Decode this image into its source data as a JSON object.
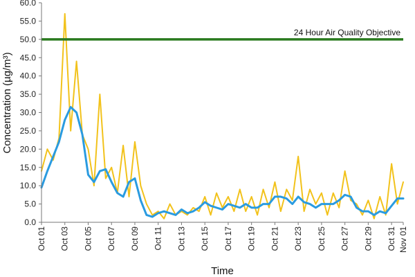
{
  "chart_data": {
    "type": "line",
    "title": "",
    "xlabel": "Time",
    "ylabel": "Concentration (µg/m³)",
    "ylim": [
      0,
      60
    ],
    "y_ticks": [
      "0.0",
      "5.0",
      "10.0",
      "15.0",
      "20.0",
      "25.0",
      "30.0",
      "35.0",
      "40.0",
      "45.0",
      "50.0",
      "55.0",
      "60.0"
    ],
    "xlim": [
      "Oct 01",
      "Nov 01"
    ],
    "x_ticks": [
      "Oct 01",
      "Oct 03",
      "Oct 05",
      "Oct 07",
      "Oct 09",
      "Oct 11",
      "Oct 13",
      "Oct 15",
      "Oct 17",
      "Oct 19",
      "Oct 21",
      "Oct 23",
      "Oct 25",
      "Oct 27",
      "Oct 29",
      "Oct 31",
      "Nov 01"
    ],
    "grid": false,
    "objective": {
      "label": "24 Hour Air Quality Objective",
      "value": 50,
      "color": "#2a7a1e"
    },
    "series": [
      {
        "color": "#f2c21b",
        "x": [
          "Oct 01",
          "Oct 01 12:00",
          "Oct 02",
          "Oct 02 12:00",
          "Oct 03",
          "Oct 03 12:00",
          "Oct 04",
          "Oct 04 12:00",
          "Oct 05",
          "Oct 05 12:00",
          "Oct 06",
          "Oct 06 12:00",
          "Oct 07",
          "Oct 07 12:00",
          "Oct 08",
          "Oct 08 12:00",
          "Oct 09",
          "Oct 09 12:00",
          "Oct 10",
          "Oct 10 12:00",
          "Oct 11",
          "Oct 11 12:00",
          "Oct 12",
          "Oct 12 12:00",
          "Oct 13",
          "Oct 13 12:00",
          "Oct 14",
          "Oct 14 12:00",
          "Oct 15",
          "Oct 15 12:00",
          "Oct 16",
          "Oct 16 12:00",
          "Oct 17",
          "Oct 17 12:00",
          "Oct 18",
          "Oct 18 12:00",
          "Oct 19",
          "Oct 19 12:00",
          "Oct 20",
          "Oct 20 12:00",
          "Oct 21",
          "Oct 21 12:00",
          "Oct 22",
          "Oct 22 12:00",
          "Oct 23",
          "Oct 23 12:00",
          "Oct 24",
          "Oct 24 12:00",
          "Oct 25",
          "Oct 25 12:00",
          "Oct 26",
          "Oct 26 12:00",
          "Oct 27",
          "Oct 27 12:00",
          "Oct 28",
          "Oct 28 12:00",
          "Oct 29",
          "Oct 29 12:00",
          "Oct 30",
          "Oct 30 12:00",
          "Oct 31",
          "Oct 31 12:00",
          "Nov 01"
        ],
        "values": [
          14,
          20,
          17,
          23,
          57,
          25,
          44,
          24,
          20,
          10,
          35,
          12,
          15,
          8,
          21,
          7,
          22,
          10,
          5,
          2,
          3,
          1,
          5,
          2,
          3,
          2,
          4,
          3,
          7,
          2,
          8,
          4,
          7,
          3,
          9,
          3,
          7,
          2,
          9,
          4,
          11,
          3,
          9,
          6,
          18,
          3,
          9,
          5,
          8,
          2,
          8,
          4,
          14,
          6,
          5,
          2,
          6,
          1,
          7,
          2,
          16,
          5,
          11
        ]
      },
      {
        "color": "#2a9be0",
        "x": [
          "Oct 01",
          "Oct 01 12:00",
          "Oct 02",
          "Oct 02 12:00",
          "Oct 03",
          "Oct 03 12:00",
          "Oct 04",
          "Oct 04 12:00",
          "Oct 05",
          "Oct 05 12:00",
          "Oct 06",
          "Oct 06 12:00",
          "Oct 07",
          "Oct 07 12:00",
          "Oct 08",
          "Oct 08 12:00",
          "Oct 09",
          "Oct 09 12:00",
          "Oct 10",
          "Oct 10 12:00",
          "Oct 11",
          "Oct 11 12:00",
          "Oct 12",
          "Oct 12 12:00",
          "Oct 13",
          "Oct 13 12:00",
          "Oct 14",
          "Oct 14 12:00",
          "Oct 15",
          "Oct 15 12:00",
          "Oct 16",
          "Oct 16 12:00",
          "Oct 17",
          "Oct 17 12:00",
          "Oct 18",
          "Oct 18 12:00",
          "Oct 19",
          "Oct 19 12:00",
          "Oct 20",
          "Oct 20 12:00",
          "Oct 21",
          "Oct 21 12:00",
          "Oct 22",
          "Oct 22 12:00",
          "Oct 23",
          "Oct 23 12:00",
          "Oct 24",
          "Oct 24 12:00",
          "Oct 25",
          "Oct 25 12:00",
          "Oct 26",
          "Oct 26 12:00",
          "Oct 27",
          "Oct 27 12:00",
          "Oct 28",
          "Oct 28 12:00",
          "Oct 29",
          "Oct 29 12:00",
          "Oct 30",
          "Oct 30 12:00",
          "Oct 31",
          "Oct 31 12:00",
          "Nov 01"
        ],
        "values": [
          9.5,
          14,
          18,
          22,
          28,
          31.5,
          30,
          24,
          13,
          11,
          14,
          14.5,
          11,
          8,
          7,
          11,
          12,
          6,
          2,
          1.5,
          2.5,
          3,
          2.5,
          2,
          3.5,
          2.5,
          3,
          4,
          5.5,
          4.5,
          4,
          3.5,
          5,
          4.5,
          4,
          5,
          4,
          4,
          5,
          5,
          7,
          7,
          6.5,
          5,
          7,
          5.5,
          5,
          4,
          5,
          5,
          5,
          6,
          7.5,
          7,
          4,
          3,
          3,
          2,
          3,
          2.5,
          4.5,
          6.5,
          6.5
        ]
      }
    ]
  }
}
